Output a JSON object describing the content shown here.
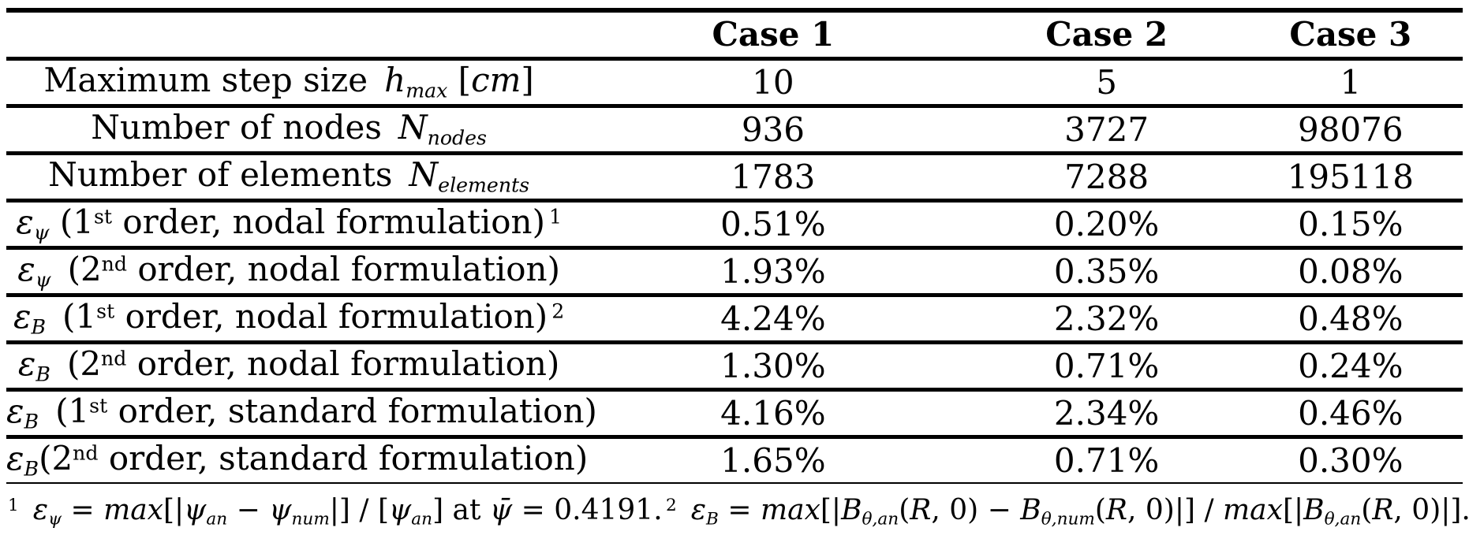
{
  "accent_colors": {
    "text": "#000000",
    "background": "#ffffff",
    "rule": "#000000"
  },
  "table": {
    "header": {
      "col0": "",
      "cases": [
        "Case 1",
        "Case 2",
        "Case 3"
      ]
    },
    "rows": [
      {
        "label": [
          {
            "t": "Maximum step size ",
            "s": "n"
          },
          {
            "t": "h",
            "s": "i"
          },
          {
            "t": "max",
            "s": "isub"
          },
          {
            "t": " [",
            "s": "n"
          },
          {
            "t": "cm",
            "s": "i"
          },
          {
            "t": "]",
            "s": "n"
          }
        ],
        "values": [
          "10",
          "5",
          "1"
        ]
      },
      {
        "label": [
          {
            "t": "Number of nodes ",
            "s": "n"
          },
          {
            "t": "N",
            "s": "i"
          },
          {
            "t": "nodes",
            "s": "isub"
          }
        ],
        "values": [
          "936",
          "3727",
          "98076"
        ]
      },
      {
        "label": [
          {
            "t": "Number of elements ",
            "s": "n"
          },
          {
            "t": "N",
            "s": "i"
          },
          {
            "t": "elements",
            "s": "isub"
          }
        ],
        "values": [
          "1783",
          "7288",
          "195118"
        ]
      },
      {
        "label": [
          {
            "t": "ε",
            "s": "i"
          },
          {
            "t": "ψ",
            "s": "isub"
          },
          {
            "t": " (1",
            "s": "n"
          },
          {
            "t": "st",
            "s": "sup"
          },
          {
            "t": " order, nodal formulation)",
            "s": "n"
          },
          {
            "t": " 1",
            "s": "sup"
          }
        ],
        "values": [
          "0.51%",
          "0.20%",
          "0.15%"
        ]
      },
      {
        "label": [
          {
            "t": "ε",
            "s": "i"
          },
          {
            "t": "ψ",
            "s": "isub"
          },
          {
            "t": " (2",
            "s": "n"
          },
          {
            "t": "nd",
            "s": "sup"
          },
          {
            "t": " order, nodal formulation)",
            "s": "n"
          }
        ],
        "values": [
          "1.93%",
          "0.35%",
          "0.08%"
        ]
      },
      {
        "label": [
          {
            "t": "ε",
            "s": "i"
          },
          {
            "t": "B",
            "s": "isub"
          },
          {
            "t": " (1",
            "s": "n"
          },
          {
            "t": "st",
            "s": "sup"
          },
          {
            "t": " order, nodal formulation)",
            "s": "n"
          },
          {
            "t": " 2",
            "s": "sup"
          }
        ],
        "values": [
          "4.24%",
          "2.32%",
          "0.48%"
        ]
      },
      {
        "label": [
          {
            "t": "ε",
            "s": "i"
          },
          {
            "t": "B",
            "s": "isub"
          },
          {
            "t": " (2",
            "s": "n"
          },
          {
            "t": "nd",
            "s": "sup"
          },
          {
            "t": " order, nodal formulation)",
            "s": "n"
          }
        ],
        "values": [
          "1.30%",
          "0.71%",
          "0.24%"
        ]
      },
      {
        "label": [
          {
            "t": "ε",
            "s": "i"
          },
          {
            "t": "B",
            "s": "isub"
          },
          {
            "t": " (1",
            "s": "n"
          },
          {
            "t": "st",
            "s": "sup"
          },
          {
            "t": " order, standard formulation)",
            "s": "n"
          }
        ],
        "values": [
          "4.16%",
          "2.34%",
          "0.46%"
        ]
      },
      {
        "label": [
          {
            "t": "ε",
            "s": "i"
          },
          {
            "t": "B",
            "s": "isub"
          },
          {
            "t": "(2",
            "s": "n"
          },
          {
            "t": "nd",
            "s": "sup"
          },
          {
            "t": " order, standard formulation)",
            "s": "n"
          }
        ],
        "values": [
          "1.65%",
          "0.71%",
          "0.30%"
        ]
      }
    ],
    "footnote": [
      {
        "t": "1",
        "s": "sup"
      },
      {
        "t": " ",
        "s": "n"
      },
      {
        "t": "ε",
        "s": "i"
      },
      {
        "t": "ψ",
        "s": "isub"
      },
      {
        "t": " = ",
        "s": "n"
      },
      {
        "t": "max",
        "s": "i"
      },
      {
        "t": "[|",
        "s": "n"
      },
      {
        "t": "ψ",
        "s": "i"
      },
      {
        "t": "an",
        "s": "isub"
      },
      {
        "t": " − ",
        "s": "n"
      },
      {
        "t": "ψ",
        "s": "i"
      },
      {
        "t": "num",
        "s": "isub"
      },
      {
        "t": "|] / [",
        "s": "n"
      },
      {
        "t": "ψ",
        "s": "i"
      },
      {
        "t": "an",
        "s": "isub"
      },
      {
        "t": "]  at  ",
        "s": "n"
      },
      {
        "t": "ψ̄",
        "s": "i"
      },
      {
        "t": " = 0.4191.",
        "s": "n"
      },
      {
        "t": " 2",
        "s": "sup"
      },
      {
        "t": " ",
        "s": "n"
      },
      {
        "t": "ε",
        "s": "i"
      },
      {
        "t": "B",
        "s": "isub"
      },
      {
        "t": " = ",
        "s": "n"
      },
      {
        "t": "max",
        "s": "i"
      },
      {
        "t": "[|",
        "s": "n"
      },
      {
        "t": "B",
        "s": "i"
      },
      {
        "t": "θ,an",
        "s": "isub"
      },
      {
        "t": "(",
        "s": "n"
      },
      {
        "t": "R",
        "s": "i"
      },
      {
        "t": ", 0) − ",
        "s": "n"
      },
      {
        "t": "B",
        "s": "i"
      },
      {
        "t": "θ,num",
        "s": "isub"
      },
      {
        "t": "(",
        "s": "n"
      },
      {
        "t": "R",
        "s": "i"
      },
      {
        "t": ", 0)|] / ",
        "s": "n"
      },
      {
        "t": "max",
        "s": "i"
      },
      {
        "t": "[|",
        "s": "n"
      },
      {
        "t": "B",
        "s": "i"
      },
      {
        "t": "θ,an",
        "s": "isub"
      },
      {
        "t": "(",
        "s": "n"
      },
      {
        "t": "R",
        "s": "i"
      },
      {
        "t": ", 0)|].",
        "s": "n"
      }
    ]
  }
}
